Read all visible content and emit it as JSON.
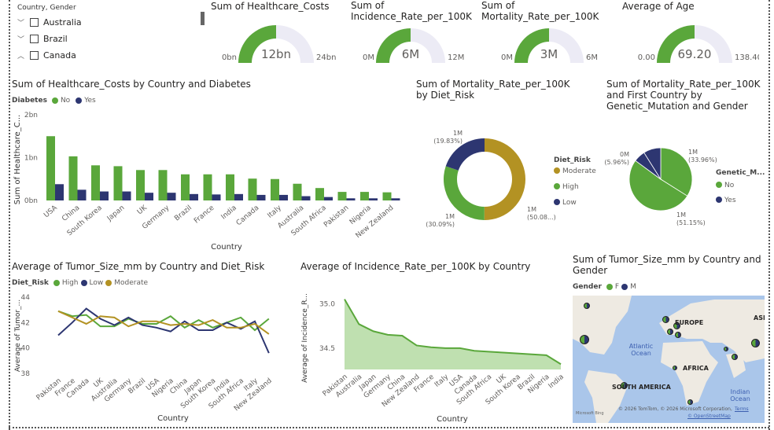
{
  "slicer": {
    "title": "Country, Gender",
    "items": [
      {
        "label": "Australia",
        "expanded": false
      },
      {
        "label": "Brazil",
        "expanded": false
      },
      {
        "label": "Canada",
        "expanded": true
      }
    ]
  },
  "gauges": [
    {
      "title": "Sum of Healthcare_Costs",
      "value": "12bn",
      "min": "0bn",
      "max": "24bn",
      "fraction": 0.5
    },
    {
      "title": "Sum of Incidence_Rate_per_100K",
      "value": "6M",
      "min": "0M",
      "max": "12M",
      "fraction": 0.5
    },
    {
      "title": "Sum of Mortality_Rate_per_100K",
      "value": "3M",
      "min": "0M",
      "max": "6M",
      "fraction": 0.5
    },
    {
      "title": "Average of Age",
      "value": "69.20",
      "min": "0.00",
      "max": "138.40",
      "fraction": 0.5
    }
  ],
  "colors": {
    "green": "#5aa73b",
    "navy": "#2d3671",
    "gold": "#b39223",
    "track": "#ecebf5",
    "area": "#bfe0b0"
  },
  "chart_data": [
    {
      "type": "bar",
      "title": "Sum of Healthcare_Costs by Country and Diabetes",
      "xlabel": "Country",
      "ylabel": "Sum of Healthcare_C...",
      "legend_title": "Diabetes",
      "legend": "top-left",
      "ylim": [
        0,
        2
      ],
      "yticks": [
        "0bn",
        "1bn",
        "2bn"
      ],
      "categories": [
        "USA",
        "China",
        "South Korea",
        "Japan",
        "UK",
        "Germany",
        "Brazil",
        "France",
        "India",
        "Canada",
        "Italy",
        "Australia",
        "South Africa",
        "Pakistan",
        "Nigeria",
        "New Zealand"
      ],
      "series": [
        {
          "name": "No",
          "values": [
            1.5,
            1.03,
            0.82,
            0.8,
            0.71,
            0.71,
            0.61,
            0.61,
            0.61,
            0.51,
            0.5,
            0.39,
            0.29,
            0.2,
            0.2,
            0.19
          ]
        },
        {
          "name": "Yes",
          "values": [
            0.38,
            0.25,
            0.21,
            0.21,
            0.18,
            0.18,
            0.15,
            0.14,
            0.15,
            0.13,
            0.13,
            0.1,
            0.08,
            0.05,
            0.05,
            0.05
          ]
        }
      ]
    },
    {
      "type": "pie",
      "subtype": "donut",
      "title": "Sum of Mortality_Rate_per_100K by Diet_Risk",
      "legend_title": "Diet_Risk",
      "legend": "right",
      "slices": [
        {
          "name": "Moderate",
          "percent": 50.08,
          "label": "1M",
          "pct_label": "(50.08...)"
        },
        {
          "name": "High",
          "percent": 30.09,
          "label": "1M",
          "pct_label": "(30.09%)"
        },
        {
          "name": "Low",
          "percent": 19.83,
          "label": "1M",
          "pct_label": "(19.83%)"
        }
      ]
    },
    {
      "type": "pie",
      "title": "Sum of Mortality_Rate_per_100K and First Country by Genetic_Mutation and Gender",
      "legend_title": "Genetic_M...",
      "legend": "right",
      "legend_items": [
        "No",
        "Yes"
      ],
      "slices": [
        {
          "name": "No",
          "percent": 33.96,
          "label": "1M",
          "pct_label": "(33.96%)"
        },
        {
          "name": "No",
          "percent": 51.15,
          "label": "1M",
          "pct_label": "(51.15%)"
        },
        {
          "name": "Yes",
          "percent": 5.96,
          "label": "0M",
          "pct_label": "(5.96%)"
        },
        {
          "name": "Yes",
          "percent": 8.93,
          "label": "",
          "pct_label": ""
        }
      ]
    },
    {
      "type": "line",
      "title": "Average of Tumor_Size_mm by Country and Diet_Risk",
      "xlabel": "Country",
      "ylabel": "Average of Tumor_...",
      "legend_title": "Diet_Risk",
      "legend": "top-left",
      "ylim": [
        38,
        44
      ],
      "yticks": [
        "38",
        "40",
        "42",
        "44"
      ],
      "categories": [
        "Pakistan",
        "France",
        "Canada",
        "UK",
        "Australia",
        "Germany",
        "Brazil",
        "USA",
        "Nigeria",
        "China",
        "Japan",
        "South Korea",
        "India",
        "South Africa",
        "Italy",
        "New Zealand"
      ],
      "series": [
        {
          "name": "High",
          "values": [
            42.9,
            42.5,
            42.6,
            41.7,
            41.7,
            42.3,
            41.9,
            41.9,
            42.5,
            41.6,
            42.2,
            41.6,
            42.0,
            42.4,
            41.4,
            42.3
          ]
        },
        {
          "name": "Low",
          "values": [
            41.0,
            42.0,
            43.1,
            42.3,
            41.8,
            42.4,
            41.8,
            41.6,
            41.3,
            42.1,
            41.4,
            41.4,
            42.0,
            41.5,
            42.1,
            39.6
          ]
        },
        {
          "name": "Moderate",
          "values": [
            42.9,
            42.4,
            41.9,
            42.5,
            42.4,
            41.7,
            42.1,
            42.1,
            41.8,
            41.9,
            41.8,
            42.2,
            41.6,
            41.6,
            41.9,
            41.1
          ]
        }
      ]
    },
    {
      "type": "area",
      "title": "Average of Incidence_Rate_per_100K by Country",
      "xlabel": "Country",
      "ylabel": "Average of Incidence_R...",
      "ylim": [
        34.26,
        35.1
      ],
      "yticks": [
        "34.5",
        "35.0"
      ],
      "categories": [
        "Pakistan",
        "Australia",
        "Japan",
        "Germany",
        "China",
        "New Zealand",
        "France",
        "Italy",
        "USA",
        "Canada",
        "South Africa",
        "UK",
        "South Korea",
        "Brazil",
        "Nigeria",
        "India"
      ],
      "values": [
        35.05,
        34.77,
        34.69,
        34.65,
        34.64,
        34.53,
        34.51,
        34.5,
        34.5,
        34.47,
        34.46,
        34.45,
        34.44,
        34.43,
        34.42,
        34.32
      ]
    }
  ],
  "map": {
    "title": "Sum of Tumor_Size_mm by Country and Gender",
    "legend_title": "Gender",
    "legend": [
      "F",
      "M"
    ],
    "labels": {
      "europe": "EUROPE",
      "asia": "ASI",
      "africa": "AFRICA",
      "south_america": "SOUTH AMERICA",
      "atlantic": "Atlantic Ocean",
      "indian": "Indian Ocean"
    },
    "credits": "© 2026 TomTom, © 2026 Microsoft Corporation,",
    "terms": "Terms",
    "osm": "© OpenStreetMap",
    "bing": "Microsoft Bing"
  }
}
